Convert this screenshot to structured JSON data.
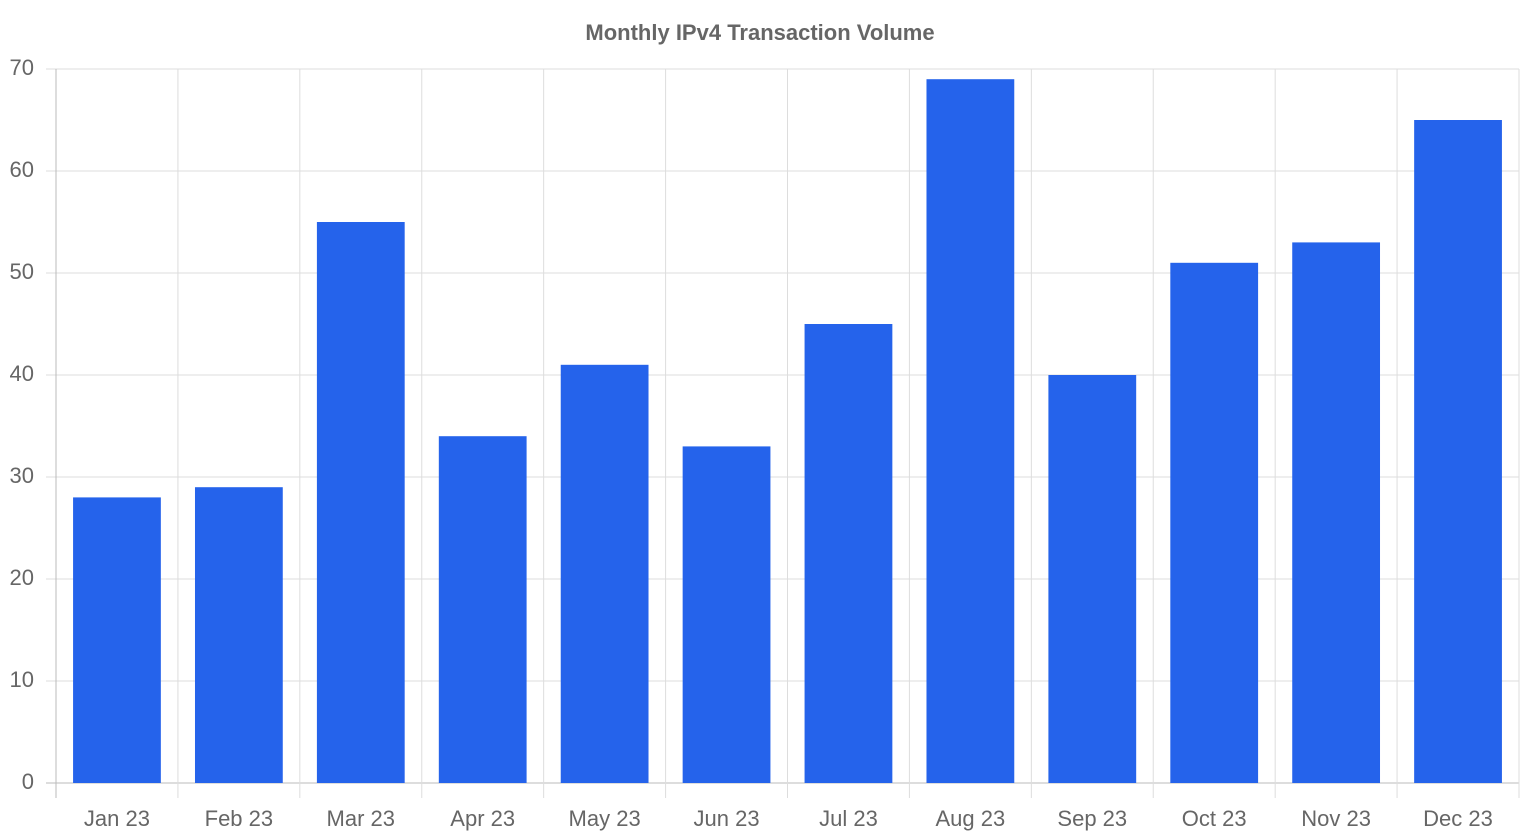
{
  "chart_data": {
    "type": "bar",
    "title": "Monthly IPv4 Transaction Volume",
    "categories": [
      "Jan 23",
      "Feb 23",
      "Mar 23",
      "Apr 23",
      "May 23",
      "Jun 23",
      "Jul 23",
      "Aug 23",
      "Sep 23",
      "Oct 23",
      "Nov 23",
      "Dec 23"
    ],
    "values": [
      28,
      29,
      55,
      34,
      41,
      33,
      45,
      69,
      40,
      51,
      53,
      65
    ],
    "color": "#2563eb",
    "ylim": [
      0,
      70
    ],
    "yticks": [
      0,
      10,
      20,
      30,
      40,
      50,
      60,
      70
    ],
    "grid": true
  }
}
